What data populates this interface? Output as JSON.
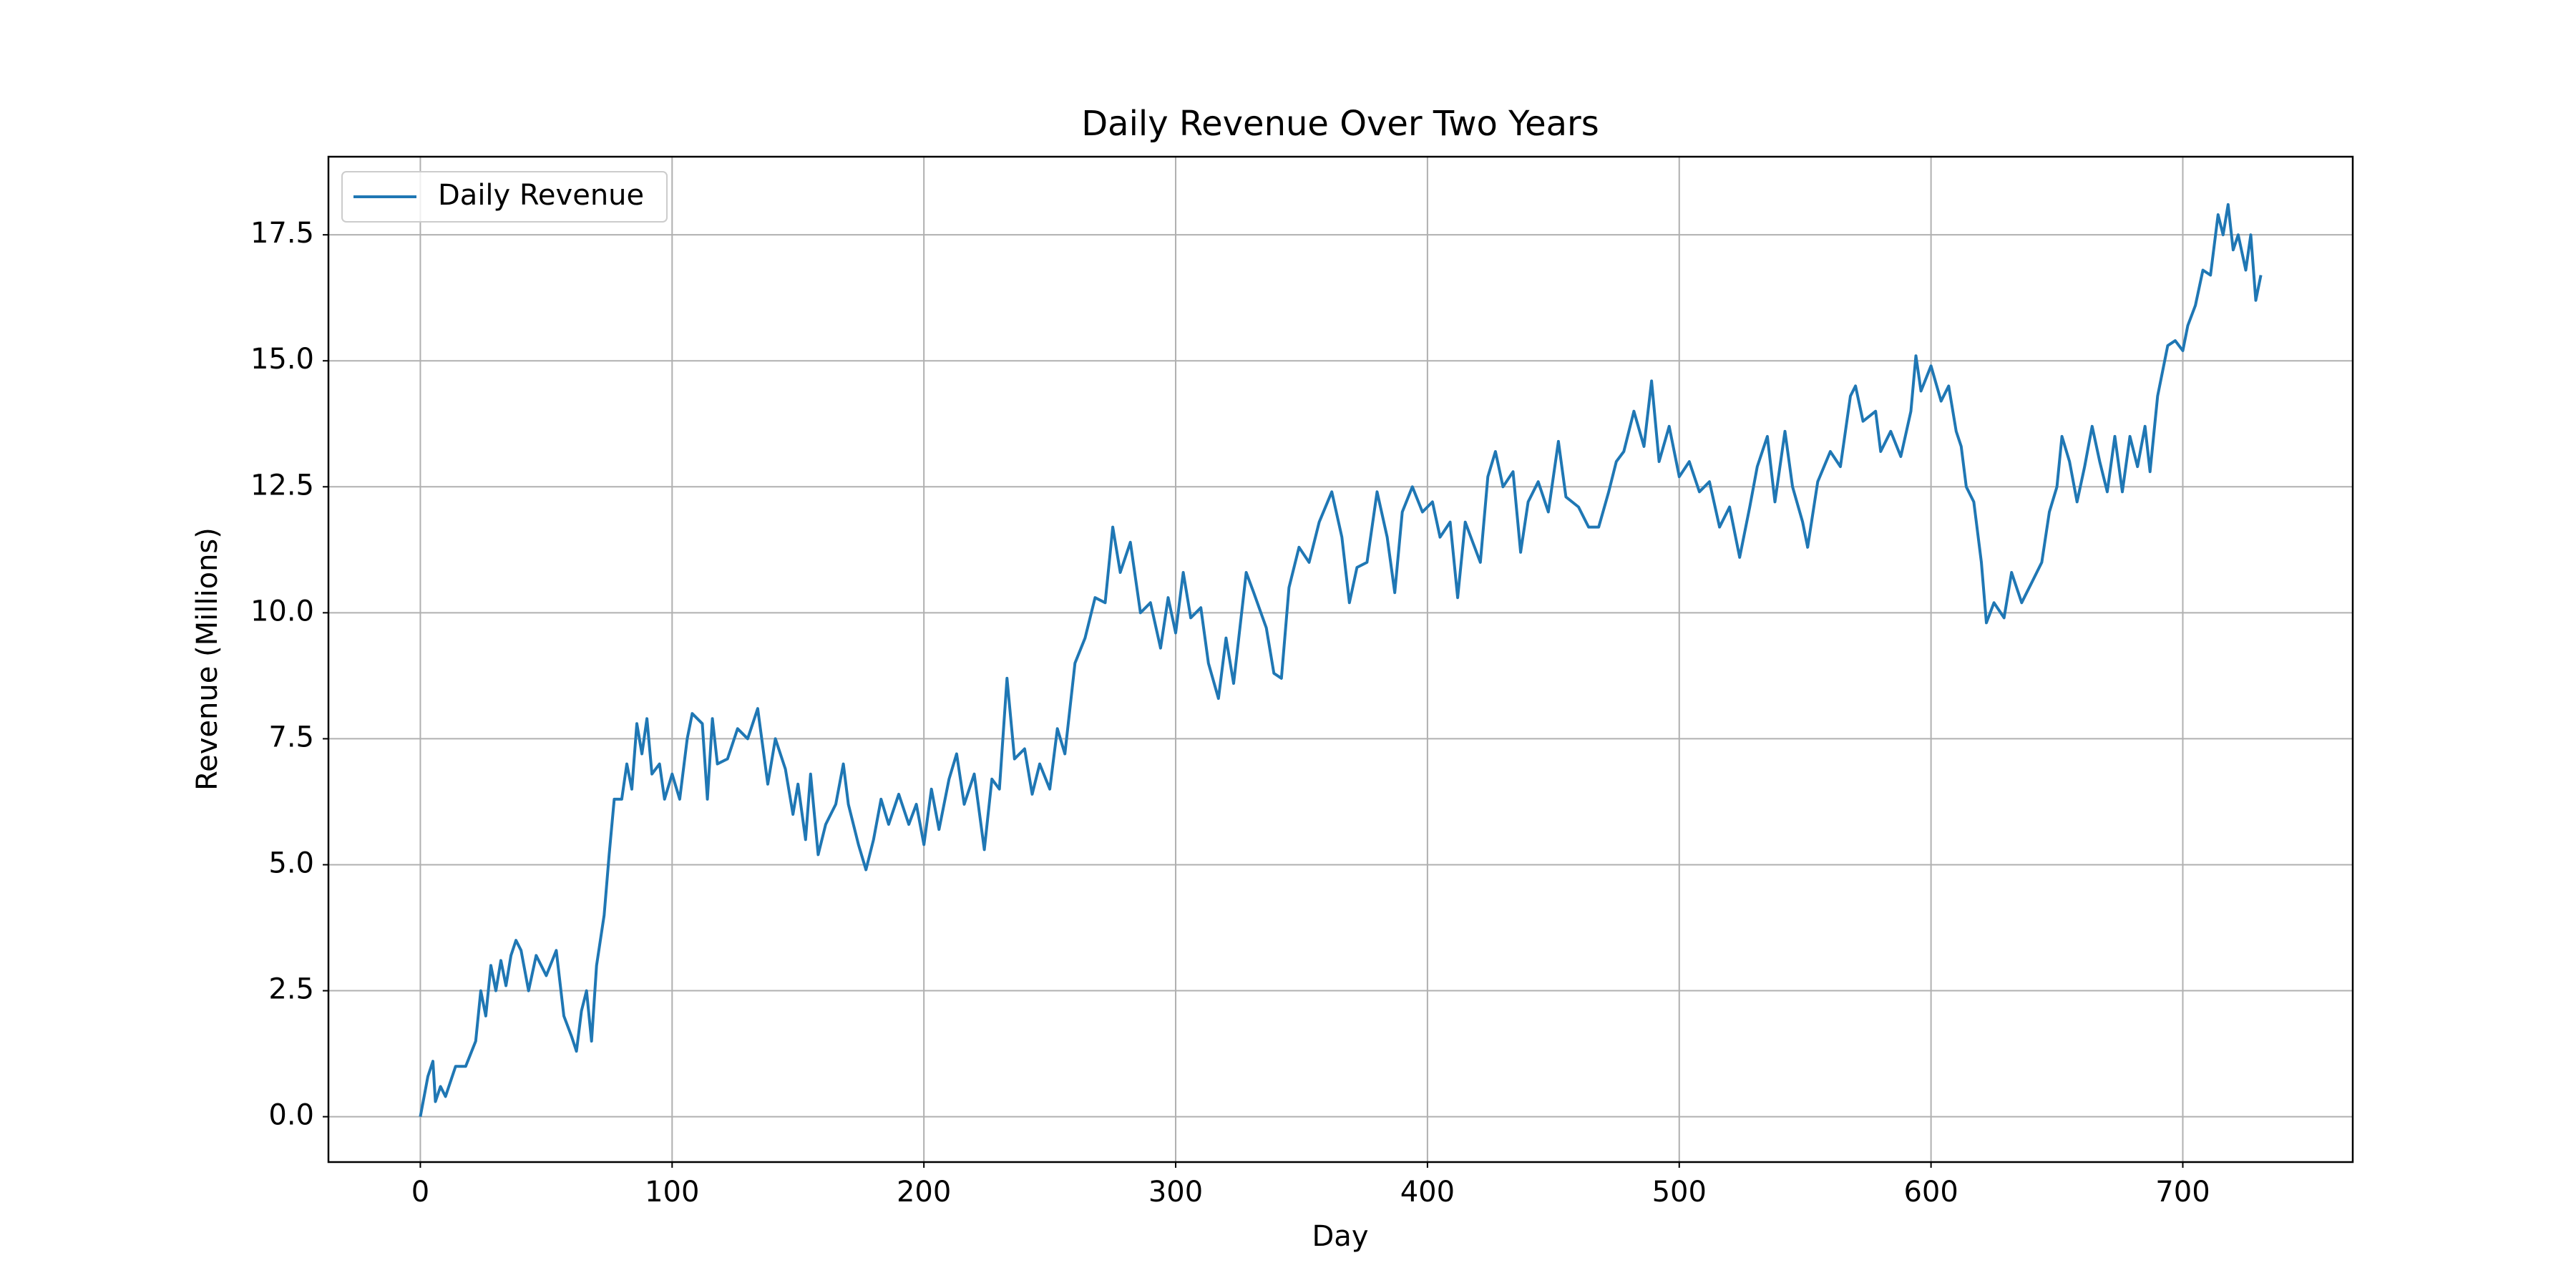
{
  "chart_data": {
    "type": "line",
    "title": "Daily Revenue Over Two Years",
    "x_label": "Day",
    "y_label": "Revenue (Millions)",
    "x": [
      0,
      3,
      5,
      6,
      8,
      10,
      14,
      18,
      22,
      24,
      26,
      28,
      30,
      32,
      34,
      36,
      38,
      40,
      43,
      46,
      50,
      54,
      57,
      60,
      62,
      64,
      66,
      68,
      70,
      73,
      75,
      77,
      80,
      82,
      84,
      86,
      88,
      90,
      92,
      95,
      97,
      100,
      103,
      106,
      108,
      112,
      114,
      116,
      118,
      122,
      126,
      130,
      134,
      138,
      141,
      145,
      148,
      150,
      153,
      155,
      158,
      161,
      165,
      168,
      170,
      174,
      177,
      180,
      183,
      186,
      190,
      194,
      197,
      200,
      203,
      206,
      210,
      213,
      216,
      220,
      224,
      227,
      230,
      233,
      236,
      240,
      243,
      246,
      250,
      253,
      256,
      260,
      264,
      268,
      272,
      275,
      278,
      282,
      286,
      290,
      294,
      297,
      300,
      303,
      306,
      310,
      313,
      317,
      320,
      323,
      328,
      331,
      336,
      339,
      342,
      345,
      349,
      353,
      357,
      362,
      366,
      369,
      372,
      376,
      380,
      384,
      387,
      390,
      394,
      398,
      402,
      405,
      409,
      412,
      415,
      418,
      421,
      424,
      427,
      430,
      434,
      437,
      440,
      444,
      448,
      452,
      455,
      460,
      464,
      468,
      472,
      475,
      478,
      482,
      486,
      489,
      492,
      496,
      500,
      504,
      508,
      512,
      516,
      520,
      524,
      528,
      531,
      535,
      538,
      542,
      545,
      549,
      551,
      555,
      560,
      564,
      568,
      570,
      573,
      578,
      580,
      584,
      588,
      592,
      594,
      596,
      600,
      604,
      607,
      610,
      612,
      614,
      617,
      620,
      622,
      625,
      629,
      632,
      636,
      640,
      644,
      647,
      650,
      652,
      655,
      658,
      661,
      664,
      667,
      670,
      673,
      676,
      679,
      682,
      685,
      687,
      690,
      694,
      697,
      700,
      702,
      705,
      708,
      711,
      714,
      716,
      718,
      720,
      722,
      725,
      727,
      729,
      731
    ],
    "series": [
      {
        "name": "Daily Revenue",
        "color": "#1f77b4",
        "values": [
          0,
          0.8,
          1.1,
          0.3,
          0.6,
          0.4,
          1.0,
          1.0,
          1.5,
          2.5,
          2.0,
          3.0,
          2.5,
          3.1,
          2.6,
          3.2,
          3.5,
          3.3,
          2.5,
          3.2,
          2.8,
          3.3,
          2.0,
          1.6,
          1.3,
          2.1,
          2.5,
          1.5,
          3.0,
          4.0,
          5.2,
          6.3,
          6.3,
          7.0,
          6.5,
          7.8,
          7.2,
          7.9,
          6.8,
          7.0,
          6.3,
          6.8,
          6.3,
          7.5,
          8.0,
          7.8,
          6.3,
          7.9,
          7.0,
          7.1,
          7.7,
          7.5,
          8.1,
          6.6,
          7.5,
          6.9,
          6.0,
          6.6,
          5.5,
          6.8,
          5.2,
          5.8,
          6.2,
          7.0,
          6.2,
          5.4,
          4.9,
          5.5,
          6.3,
          5.8,
          6.4,
          5.8,
          6.2,
          5.4,
          6.5,
          5.7,
          6.7,
          7.2,
          6.2,
          6.8,
          5.3,
          6.7,
          6.5,
          8.7,
          7.1,
          7.3,
          6.4,
          7.0,
          6.5,
          7.7,
          7.2,
          9.0,
          9.5,
          10.3,
          10.2,
          11.7,
          10.8,
          11.4,
          10.0,
          10.2,
          9.3,
          10.3,
          9.6,
          10.8,
          9.9,
          10.1,
          9.0,
          8.3,
          9.5,
          8.6,
          10.8,
          10.4,
          9.7,
          8.8,
          8.7,
          10.5,
          11.3,
          11.0,
          11.8,
          12.4,
          11.5,
          10.2,
          10.9,
          11.0,
          12.4,
          11.5,
          10.4,
          12.0,
          12.5,
          12.0,
          12.2,
          11.5,
          11.8,
          10.3,
          11.8,
          11.4,
          11.0,
          12.7,
          13.2,
          12.5,
          12.8,
          11.2,
          12.2,
          12.6,
          12.0,
          13.4,
          12.3,
          12.1,
          11.7,
          11.7,
          12.4,
          13.0,
          13.2,
          14.0,
          13.3,
          14.6,
          13.0,
          13.7,
          12.7,
          13.0,
          12.4,
          12.6,
          11.7,
          12.1,
          11.1,
          12.1,
          12.9,
          13.5,
          12.2,
          13.6,
          12.5,
          11.8,
          11.3,
          12.6,
          13.2,
          12.9,
          14.3,
          14.5,
          13.8,
          14.0,
          13.2,
          13.6,
          13.1,
          14.0,
          15.1,
          14.4,
          14.9,
          14.2,
          14.5,
          13.6,
          13.3,
          12.5,
          12.2,
          11.0,
          9.8,
          10.2,
          9.9,
          10.8,
          10.2,
          10.6,
          11.0,
          12.0,
          12.5,
          13.5,
          13.0,
          12.2,
          12.9,
          13.7,
          13.0,
          12.4,
          13.5,
          12.4,
          13.5,
          12.9,
          13.7,
          12.8,
          14.3,
          15.3,
          15.4,
          15.2,
          15.7,
          16.1,
          16.8,
          16.7,
          17.9,
          17.5,
          18.1,
          17.2,
          17.5,
          16.8,
          17.5,
          16.2,
          16.7
        ]
      }
    ],
    "xlim": [
      -36.5,
      767.5
    ],
    "ylim": [
      -0.9,
      19.05
    ],
    "xticks": [
      0,
      100,
      200,
      300,
      400,
      500,
      600,
      700
    ],
    "yticks": [
      {
        "value": 0,
        "label": "0.0"
      },
      2.5,
      {
        "value": 5,
        "label": "5.0"
      },
      7.5,
      {
        "value": 10,
        "label": "10.0"
      },
      12.5,
      {
        "value": 15,
        "label": "15.0"
      },
      17.5
    ],
    "grid": true,
    "legend": "upper left"
  }
}
